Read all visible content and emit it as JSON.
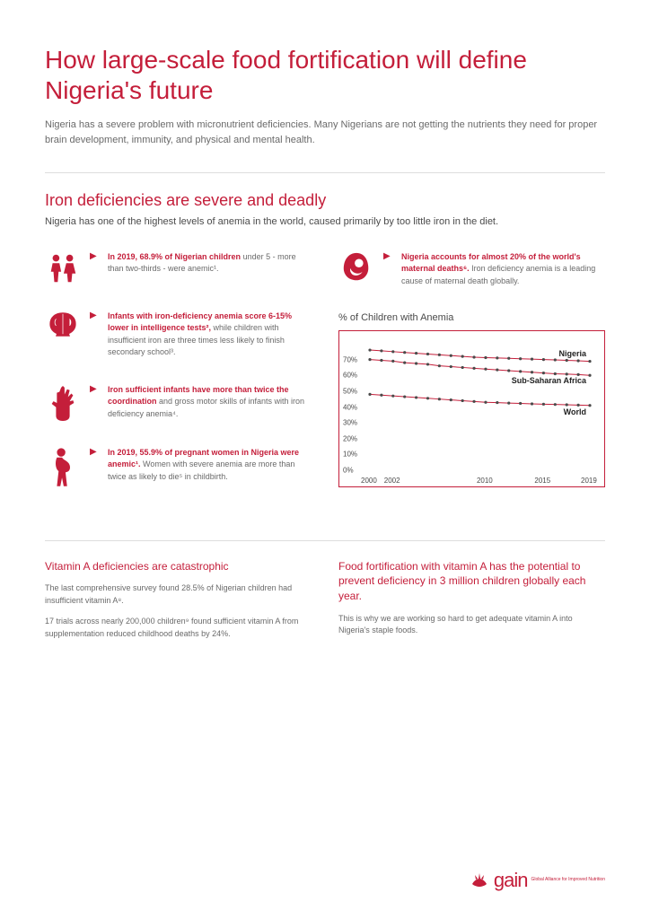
{
  "title": "How large-scale food fortification will define Nigeria's future",
  "intro": "Nigeria has a severe problem with micronutrient deficiencies. Many Nigerians are not getting the nutrients they need for proper brain development, immunity, and physical and mental health.",
  "section1": {
    "title": "Iron deficiencies are severe and deadly",
    "subtitle": "Nigeria has one of the highest levels of anemia in the world, caused primarily by too little iron in the diet."
  },
  "facts": {
    "children": {
      "bold": "In 2019, 68.9% of Nigerian children",
      "rest": " under 5 - more than two-thirds - were anemic¹."
    },
    "maternal": {
      "bold": "Nigeria accounts for almost 20% of the world's maternal deaths⁶.",
      "rest": " Iron deficiency anemia is a leading cause of maternal death globally."
    },
    "intelligence": {
      "bold": "Infants with iron-deficiency anemia score 6-15% lower in intelligence tests²,",
      "rest": " while children with insufficient iron are three times less likely to finish secondary school³."
    },
    "coordination": {
      "bold": "Iron sufficient infants have more than twice the coordination",
      "rest": " and gross motor skills of infants with iron deficiency anemia⁴."
    },
    "pregnant": {
      "bold": "In 2019, 55.9% of pregnant women in Nigeria were anemic¹.",
      "rest": " Women with severe anemia are more than twice as likely to die⁵ in childbirth."
    }
  },
  "chart": {
    "title": "% of Children with Anemia",
    "ylabels": [
      "70%",
      "60%",
      "50%",
      "40%",
      "30%",
      "20%",
      "10%",
      "0%"
    ],
    "xlabels": [
      "2000",
      "2002",
      "2010",
      "2015",
      "2019"
    ],
    "series": {
      "nigeria": {
        "label": "Nigeria",
        "values": [
          76,
          75.5,
          75,
          74.5,
          74,
          73.5,
          73,
          72.5,
          72,
          71.5,
          71.2,
          71,
          70.8,
          70.5,
          70.3,
          70,
          69.8,
          69.5,
          69.2,
          68.9
        ]
      },
      "ssa": {
        "label": "Sub-Saharan Africa",
        "values": [
          70,
          69.5,
          69,
          68,
          67.5,
          67,
          66,
          65.5,
          65,
          64.5,
          64,
          63.5,
          63,
          62.5,
          62,
          61.5,
          61,
          60.8,
          60.5,
          60
        ]
      },
      "world": {
        "label": "World",
        "values": [
          48,
          47.5,
          47,
          46.5,
          46,
          45.5,
          45,
          44.5,
          44,
          43.5,
          43,
          42.8,
          42.5,
          42.3,
          42,
          41.8,
          41.6,
          41.4,
          41.2,
          41
        ]
      }
    },
    "color_line": "#c41e3a",
    "color_marker": "#4a4a4a",
    "ylim": [
      0,
      80
    ],
    "xlim": [
      2000,
      2019
    ]
  },
  "bottom": {
    "left_title": "Vitamin A deficiencies are catastrophic",
    "left_p1": "The last comprehensive survey found 28.5% of Nigerian children had insufficient vitamin A⁸.",
    "left_p2": "17 trials across nearly 200,000 children⁹ found sufficient vitamin A from supplementation reduced childhood deaths by 24%.",
    "right_title": "Food fortification with vitamin A has the potential to prevent deficiency in 3 million children globally each year.",
    "right_p1": "This is why we are working so hard to get adequate vitamin A into Nigeria's staple foods."
  },
  "logo": {
    "text": "gain",
    "sub": "Global Alliance for Improved Nutrition"
  },
  "colors": {
    "accent": "#c41e3a",
    "text": "#4a4a4a",
    "subtext": "#6a6a6a"
  }
}
